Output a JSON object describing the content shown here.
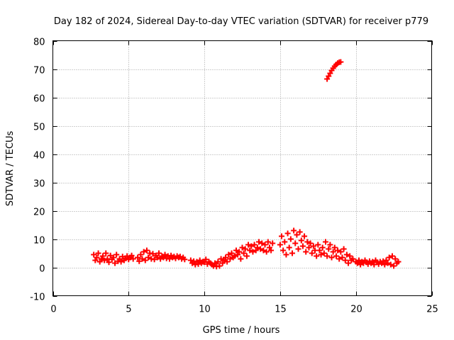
{
  "chart_data": {
    "type": "scatter",
    "title": "Day 182 of 2024, Sidereal Day-to-day VTEC variation (SDTVAR) for receiver p779",
    "xlabel": "GPS time / hours",
    "ylabel": "SDTVAR / TECUs",
    "xlim": [
      0,
      25
    ],
    "ylim": [
      -10,
      80
    ],
    "xticks": [
      0,
      5,
      10,
      15,
      20,
      25
    ],
    "yticks": [
      -10,
      0,
      10,
      20,
      30,
      40,
      50,
      60,
      70,
      80
    ],
    "grid": true,
    "marker": "plus",
    "color": "#ff0000",
    "series": [
      {
        "name": "SDTVAR",
        "points": [
          [
            2.7,
            4.5
          ],
          [
            2.8,
            2.5
          ],
          [
            2.9,
            3.5
          ],
          [
            3.0,
            5.0
          ],
          [
            3.1,
            2.0
          ],
          [
            3.2,
            3.0
          ],
          [
            3.3,
            4.0
          ],
          [
            3.4,
            2.5
          ],
          [
            3.5,
            5.0
          ],
          [
            3.6,
            3.0
          ],
          [
            3.7,
            1.8
          ],
          [
            3.8,
            4.2
          ],
          [
            3.9,
            2.8
          ],
          [
            4.0,
            3.5
          ],
          [
            4.1,
            1.5
          ],
          [
            4.2,
            4.5
          ],
          [
            4.3,
            2.2
          ],
          [
            4.4,
            3.0
          ],
          [
            4.5,
            2.0
          ],
          [
            4.6,
            3.8
          ],
          [
            4.7,
            2.5
          ],
          [
            4.8,
            3.2
          ],
          [
            4.9,
            4.0
          ],
          [
            5.0,
            2.8
          ],
          [
            5.1,
            3.5
          ],
          [
            5.2,
            4.2
          ],
          [
            5.3,
            3.0
          ],
          [
            5.6,
            3.5
          ],
          [
            5.7,
            2.2
          ],
          [
            5.8,
            4.5
          ],
          [
            5.9,
            3.0
          ],
          [
            6.0,
            5.5
          ],
          [
            6.1,
            2.5
          ],
          [
            6.2,
            6.0
          ],
          [
            6.3,
            3.5
          ],
          [
            6.4,
            5.0
          ],
          [
            6.5,
            3.0
          ],
          [
            6.6,
            4.8
          ],
          [
            6.7,
            2.8
          ],
          [
            6.8,
            4.2
          ],
          [
            6.9,
            3.5
          ],
          [
            7.0,
            5.0
          ],
          [
            7.1,
            3.0
          ],
          [
            7.2,
            4.0
          ],
          [
            7.3,
            3.5
          ],
          [
            7.4,
            4.5
          ],
          [
            7.5,
            3.2
          ],
          [
            7.6,
            4.0
          ],
          [
            7.7,
            3.0
          ],
          [
            7.8,
            4.2
          ],
          [
            7.9,
            3.5
          ],
          [
            8.0,
            3.8
          ],
          [
            8.1,
            3.2
          ],
          [
            8.2,
            4.0
          ],
          [
            8.3,
            3.5
          ],
          [
            8.4,
            3.8
          ],
          [
            8.5,
            3.0
          ],
          [
            8.6,
            3.5
          ],
          [
            8.7,
            2.8
          ],
          [
            9.1,
            2.5
          ],
          [
            9.2,
            1.5
          ],
          [
            9.3,
            2.2
          ],
          [
            9.4,
            1.0
          ],
          [
            9.5,
            2.0
          ],
          [
            9.6,
            1.2
          ],
          [
            9.7,
            2.5
          ],
          [
            9.8,
            1.5
          ],
          [
            9.9,
            2.0
          ],
          [
            10.0,
            1.8
          ],
          [
            10.1,
            2.8
          ],
          [
            10.2,
            1.2
          ],
          [
            10.3,
            2.0
          ],
          [
            10.4,
            1.5
          ],
          [
            10.5,
            1.0
          ],
          [
            10.6,
            0.5
          ],
          [
            10.7,
            1.5
          ],
          [
            10.8,
            0.3
          ],
          [
            10.9,
            2.0
          ],
          [
            11.0,
            0.5
          ],
          [
            11.1,
            3.0
          ],
          [
            11.2,
            1.5
          ],
          [
            11.3,
            2.5
          ],
          [
            11.4,
            3.5
          ],
          [
            11.5,
            2.0
          ],
          [
            11.6,
            4.5
          ],
          [
            11.7,
            3.0
          ],
          [
            11.8,
            5.0
          ],
          [
            11.9,
            3.5
          ],
          [
            12.0,
            4.0
          ],
          [
            12.1,
            6.0
          ],
          [
            12.2,
            4.5
          ],
          [
            12.3,
            5.5
          ],
          [
            12.4,
            3.0
          ],
          [
            12.5,
            7.0
          ],
          [
            12.6,
            5.0
          ],
          [
            12.7,
            6.5
          ],
          [
            12.8,
            4.0
          ],
          [
            12.9,
            8.0
          ],
          [
            13.0,
            6.0
          ],
          [
            13.1,
            7.5
          ],
          [
            13.2,
            5.5
          ],
          [
            13.3,
            8.0
          ],
          [
            13.4,
            6.0
          ],
          [
            13.5,
            7.0
          ],
          [
            13.6,
            9.0
          ],
          [
            13.7,
            6.5
          ],
          [
            13.8,
            8.5
          ],
          [
            13.9,
            6.0
          ],
          [
            14.0,
            8.0
          ],
          [
            14.1,
            5.5
          ],
          [
            14.2,
            9.0
          ],
          [
            14.3,
            7.0
          ],
          [
            14.4,
            6.0
          ],
          [
            14.5,
            8.5
          ],
          [
            15.0,
            8.0
          ],
          [
            15.1,
            11.0
          ],
          [
            15.2,
            6.0
          ],
          [
            15.3,
            9.0
          ],
          [
            15.4,
            4.5
          ],
          [
            15.5,
            12.0
          ],
          [
            15.6,
            7.0
          ],
          [
            15.7,
            10.0
          ],
          [
            15.8,
            5.0
          ],
          [
            15.9,
            13.0
          ],
          [
            16.0,
            8.5
          ],
          [
            16.1,
            11.5
          ],
          [
            16.2,
            6.5
          ],
          [
            16.3,
            12.5
          ],
          [
            16.4,
            9.5
          ],
          [
            16.5,
            7.5
          ],
          [
            16.6,
            11.0
          ],
          [
            16.7,
            5.5
          ],
          [
            16.8,
            9.0
          ],
          [
            16.9,
            7.0
          ],
          [
            17.0,
            8.5
          ],
          [
            17.1,
            5.0
          ],
          [
            17.2,
            7.5
          ],
          [
            17.3,
            6.0
          ],
          [
            17.4,
            4.0
          ],
          [
            17.5,
            8.0
          ],
          [
            17.6,
            6.0
          ],
          [
            17.7,
            4.5
          ],
          [
            17.8,
            7.0
          ],
          [
            17.9,
            5.0
          ],
          [
            18.0,
            9.0
          ],
          [
            18.1,
            4.0
          ],
          [
            18.2,
            6.5
          ],
          [
            18.3,
            8.0
          ],
          [
            18.4,
            3.5
          ],
          [
            18.5,
            5.5
          ],
          [
            18.6,
            7.0
          ],
          [
            18.7,
            4.0
          ],
          [
            18.8,
            6.0
          ],
          [
            18.9,
            3.0
          ],
          [
            19.0,
            5.5
          ],
          [
            19.1,
            3.5
          ],
          [
            19.2,
            6.5
          ],
          [
            19.3,
            2.5
          ],
          [
            19.4,
            4.5
          ],
          [
            19.5,
            1.5
          ],
          [
            19.6,
            4.0
          ],
          [
            19.7,
            2.5
          ],
          [
            19.8,
            3.0
          ],
          [
            20.0,
            2.0
          ],
          [
            20.1,
            1.5
          ],
          [
            20.2,
            2.5
          ],
          [
            20.3,
            1.0
          ],
          [
            20.4,
            2.0
          ],
          [
            20.5,
            1.5
          ],
          [
            20.6,
            2.5
          ],
          [
            20.7,
            1.8
          ],
          [
            20.8,
            1.2
          ],
          [
            20.9,
            2.2
          ],
          [
            21.0,
            1.5
          ],
          [
            21.1,
            2.0
          ],
          [
            21.2,
            1.0
          ],
          [
            21.3,
            2.5
          ],
          [
            21.4,
            1.8
          ],
          [
            21.5,
            1.2
          ],
          [
            21.6,
            2.0
          ],
          [
            21.7,
            1.5
          ],
          [
            21.8,
            2.2
          ],
          [
            21.9,
            1.0
          ],
          [
            22.0,
            2.5
          ],
          [
            22.1,
            1.5
          ],
          [
            22.2,
            3.5
          ],
          [
            22.3,
            1.0
          ],
          [
            22.4,
            4.0
          ],
          [
            22.5,
            0.5
          ],
          [
            22.6,
            3.0
          ],
          [
            22.7,
            1.5
          ],
          [
            22.8,
            2.0
          ],
          [
            18.1,
            66.5
          ],
          [
            18.2,
            67.5
          ],
          [
            18.3,
            68.5
          ],
          [
            18.4,
            69.5
          ],
          [
            18.5,
            70.3
          ],
          [
            18.6,
            71.0
          ],
          [
            18.7,
            71.6
          ],
          [
            18.8,
            72.1
          ],
          [
            18.9,
            72.4
          ],
          [
            19.0,
            72.5
          ]
        ]
      }
    ]
  }
}
